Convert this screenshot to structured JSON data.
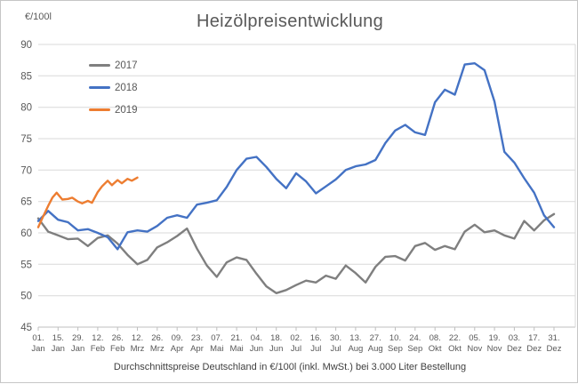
{
  "chart_data": {
    "type": "line",
    "title": "Heizölpreisentwicklung",
    "y_unit_label": "€/100l",
    "caption": "Durchschnittspreise Deutschland in €/100l (inkl. MwSt.) bei 3.000 Liter Bestellung",
    "ylim": [
      45,
      90
    ],
    "yticks": [
      45,
      50,
      55,
      60,
      65,
      70,
      75,
      80,
      85,
      90
    ],
    "grid": true,
    "legend_position": "top-left-inside",
    "x_max_day": 364,
    "x_tick_interval_days": 14,
    "x_tick_labels": [
      {
        "day": "01.",
        "month": "Jan"
      },
      {
        "day": "15.",
        "month": "Jan"
      },
      {
        "day": "29.",
        "month": "Jan"
      },
      {
        "day": "12.",
        "month": "Feb"
      },
      {
        "day": "26.",
        "month": "Feb"
      },
      {
        "day": "12.",
        "month": "Mrz"
      },
      {
        "day": "26.",
        "month": "Mrz"
      },
      {
        "day": "09.",
        "month": "Apr"
      },
      {
        "day": "23.",
        "month": "Apr"
      },
      {
        "day": "07.",
        "month": "Mai"
      },
      {
        "day": "21.",
        "month": "Mai"
      },
      {
        "day": "04.",
        "month": "Jun"
      },
      {
        "day": "18.",
        "month": "Jun"
      },
      {
        "day": "02.",
        "month": "Jul"
      },
      {
        "day": "16.",
        "month": "Jul"
      },
      {
        "day": "30.",
        "month": "Jul"
      },
      {
        "day": "13.",
        "month": "Aug"
      },
      {
        "day": "27.",
        "month": "Aug"
      },
      {
        "day": "10.",
        "month": "Sep"
      },
      {
        "day": "24.",
        "month": "Sep"
      },
      {
        "day": "08.",
        "month": "Okt"
      },
      {
        "day": "22.",
        "month": "Okt"
      },
      {
        "day": "05.",
        "month": "Nov"
      },
      {
        "day": "19.",
        "month": "Nov"
      },
      {
        "day": "03.",
        "month": "Dez"
      },
      {
        "day": "17.",
        "month": "Dez"
      },
      {
        "day": "31.",
        "month": "Dez"
      }
    ],
    "colors": {
      "grid": "#d9d9d9",
      "axis": "#bfbfbf",
      "text": "#595959"
    },
    "series": [
      {
        "name": "2017",
        "color": "#7f7f7f",
        "days": [
          0,
          7,
          14,
          21,
          28,
          35,
          42,
          49,
          56,
          63,
          70,
          77,
          84,
          91,
          98,
          105,
          112,
          119,
          126,
          133,
          140,
          147,
          154,
          161,
          168,
          175,
          182,
          189,
          196,
          203,
          210,
          217,
          224,
          231,
          238,
          245,
          252,
          259,
          266,
          273,
          280,
          287,
          294,
          301,
          308,
          315,
          322,
          329,
          336,
          343,
          350,
          357,
          364
        ],
        "values": [
          62.3,
          60.2,
          59.6,
          59.0,
          59.1,
          57.9,
          59.2,
          59.6,
          58.3,
          56.5,
          55.0,
          55.7,
          57.7,
          58.5,
          59.5,
          60.7,
          57.5,
          54.8,
          53.0,
          55.3,
          56.1,
          55.7,
          53.5,
          51.5,
          50.4,
          50.9,
          51.7,
          52.4,
          52.1,
          53.2,
          52.7,
          54.8,
          53.6,
          52.1,
          54.6,
          56.2,
          56.3,
          55.6,
          57.9,
          58.4,
          57.3,
          57.9,
          57.4,
          60.2,
          61.3,
          60.1,
          60.4,
          59.6,
          59.1,
          61.9,
          60.4,
          62.0,
          63.0
        ]
      },
      {
        "name": "2018",
        "color": "#4472c4",
        "days": [
          0,
          7,
          14,
          21,
          28,
          35,
          42,
          49,
          56,
          63,
          70,
          77,
          84,
          91,
          98,
          105,
          112,
          119,
          126,
          133,
          140,
          147,
          154,
          161,
          168,
          175,
          182,
          189,
          196,
          203,
          210,
          217,
          224,
          231,
          238,
          245,
          252,
          259,
          266,
          273,
          280,
          287,
          294,
          301,
          308,
          315,
          322,
          329,
          336,
          343,
          350,
          357,
          364
        ],
        "values": [
          61.9,
          63.5,
          62.1,
          61.7,
          60.4,
          60.6,
          60.0,
          59.3,
          57.4,
          60.1,
          60.4,
          60.2,
          61.1,
          62.4,
          62.8,
          62.4,
          64.5,
          64.8,
          65.2,
          67.3,
          70.0,
          71.8,
          72.1,
          70.5,
          68.6,
          67.1,
          69.5,
          68.2,
          66.3,
          67.4,
          68.5,
          70.0,
          70.6,
          70.9,
          71.6,
          74.3,
          76.3,
          77.2,
          76.0,
          75.6,
          80.8,
          82.8,
          82.0,
          86.8,
          87.0,
          85.9,
          80.9,
          72.9,
          71.2,
          68.7,
          66.4,
          62.8,
          60.9
        ]
      },
      {
        "name": "2019",
        "color": "#ed7d31",
        "days": [
          0,
          3,
          7,
          10,
          13,
          17,
          21,
          24,
          28,
          31,
          35,
          38,
          42,
          45,
          49,
          52,
          56,
          59,
          63,
          66,
          70
        ],
        "values": [
          60.9,
          62.4,
          64.3,
          65.6,
          66.4,
          65.3,
          65.4,
          65.6,
          65.0,
          64.7,
          65.1,
          64.8,
          66.5,
          67.4,
          68.3,
          67.6,
          68.4,
          67.9,
          68.6,
          68.3,
          68.8
        ]
      }
    ]
  }
}
